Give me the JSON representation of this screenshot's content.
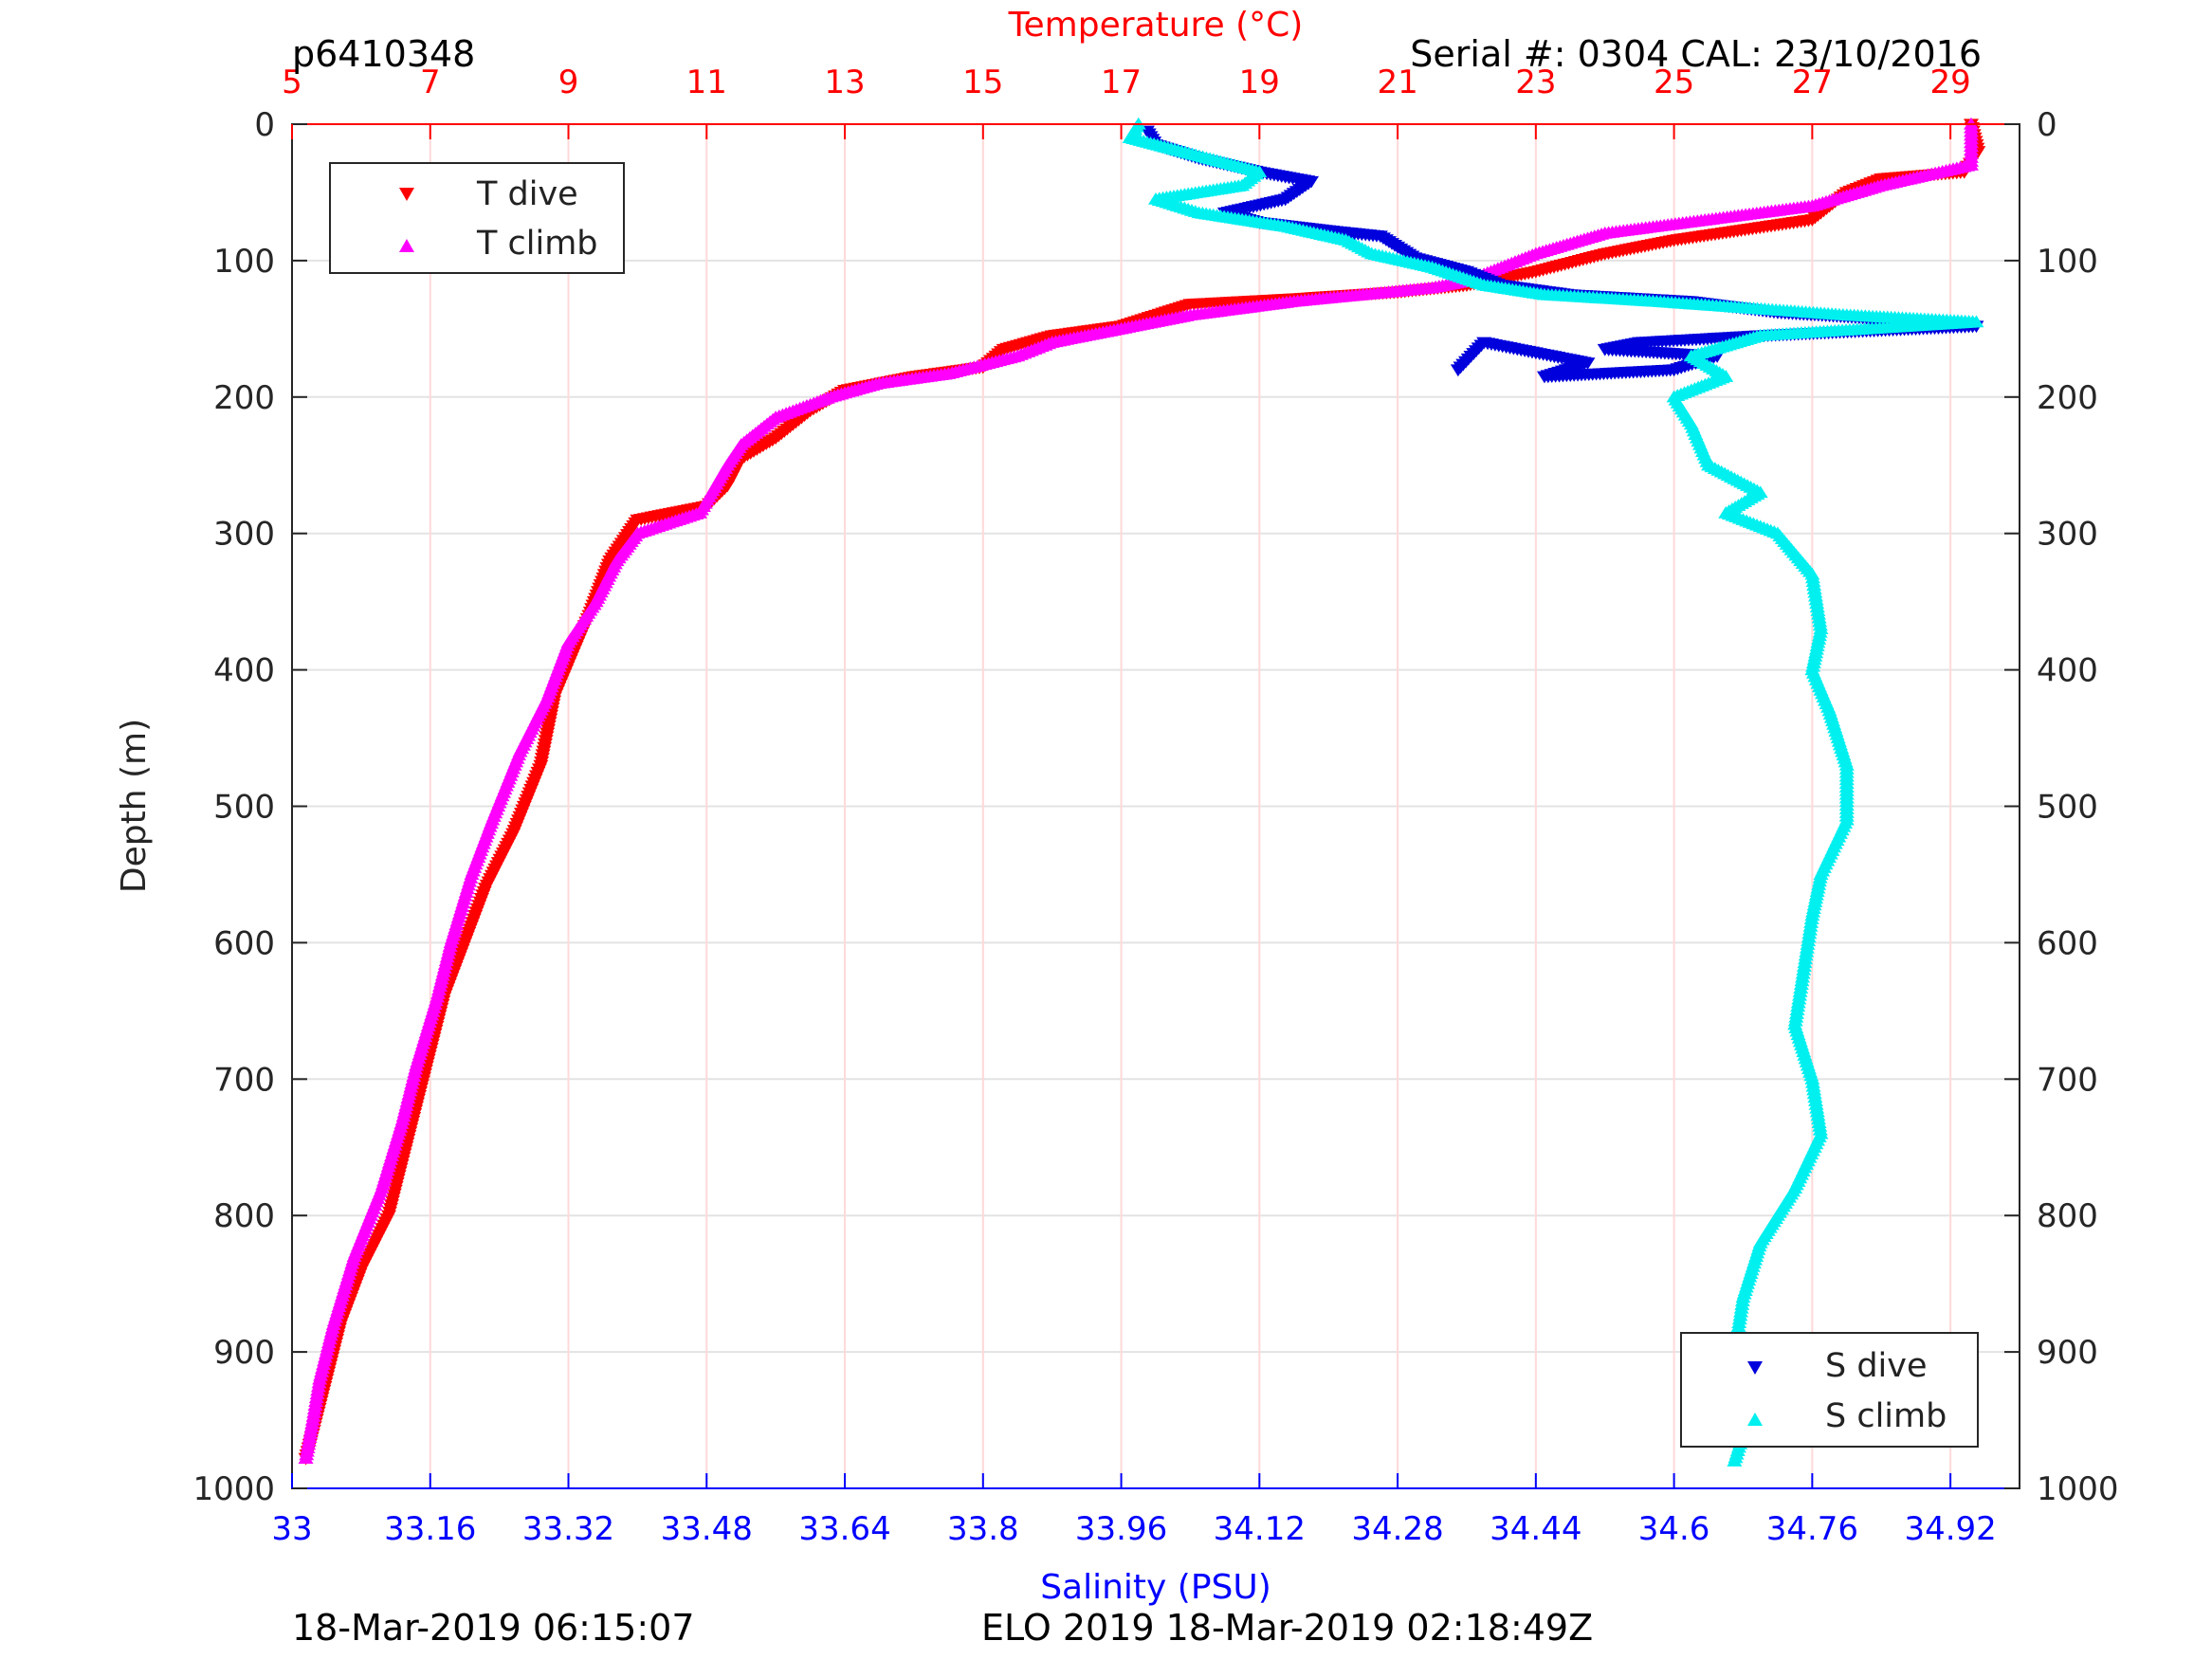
{
  "header": {
    "id_label": "p6410348",
    "serial_label": "Serial #: 0304  CAL: 23/10/2016",
    "footer_left": "18-Mar-2019 06:15:07",
    "footer_center": "ELO 2019 18-Mar-2019 02:18:49Z"
  },
  "chart_data": {
    "type": "scatter",
    "ylabel": "Depth (m)",
    "ylim": [
      0,
      1000
    ],
    "y_reversed": true,
    "yticks": [
      "0",
      "100",
      "200",
      "300",
      "400",
      "500",
      "600",
      "700",
      "800",
      "900",
      "1000"
    ],
    "temperature_axis": {
      "label": "Temperature (°C)",
      "position": "top",
      "range": [
        5,
        30
      ],
      "ticks": [
        "5",
        "7",
        "9",
        "11",
        "13",
        "15",
        "17",
        "19",
        "21",
        "23",
        "25",
        "27",
        "29"
      ],
      "color": "#ff0000"
    },
    "salinity_axis": {
      "label": "Salinity (PSU)",
      "position": "bottom",
      "range": [
        33.0,
        35.0
      ],
      "ticks": [
        "33",
        "33.16",
        "33.32",
        "33.48",
        "33.64",
        "33.8",
        "33.96",
        "34.12",
        "34.28",
        "34.44",
        "34.6",
        "34.76",
        "34.92"
      ],
      "color": "#0000ff"
    },
    "grid": true,
    "legends": [
      {
        "placement": "top-left",
        "entries": [
          "T dive",
          "T climb"
        ]
      },
      {
        "placement": "bottom-right",
        "entries": [
          "S dive",
          "S climb"
        ]
      }
    ],
    "series": [
      {
        "name": "T dive",
        "axis": "temperature",
        "color": "#ff0000",
        "marker": "triangle-down",
        "points": [
          [
            29.3,
            0
          ],
          [
            29.4,
            20
          ],
          [
            29.2,
            35
          ],
          [
            28.0,
            40
          ],
          [
            27.5,
            50
          ],
          [
            27.0,
            70
          ],
          [
            25.0,
            85
          ],
          [
            24.0,
            95
          ],
          [
            23.0,
            108
          ],
          [
            22.0,
            118
          ],
          [
            21.0,
            123
          ],
          [
            19.5,
            128
          ],
          [
            18.0,
            132
          ],
          [
            17.5,
            140
          ],
          [
            17.0,
            148
          ],
          [
            16.0,
            155
          ],
          [
            15.3,
            165
          ],
          [
            15.0,
            178
          ],
          [
            14.0,
            185
          ],
          [
            13.0,
            195
          ],
          [
            12.5,
            210
          ],
          [
            12.0,
            230
          ],
          [
            11.5,
            245
          ],
          [
            11.3,
            265
          ],
          [
            11.0,
            280
          ],
          [
            10.0,
            290
          ],
          [
            9.6,
            320
          ],
          [
            9.3,
            360
          ],
          [
            8.8,
            420
          ],
          [
            8.6,
            470
          ],
          [
            8.2,
            520
          ],
          [
            7.8,
            560
          ],
          [
            7.5,
            600
          ],
          [
            7.2,
            640
          ],
          [
            7.0,
            680
          ],
          [
            6.8,
            720
          ],
          [
            6.6,
            760
          ],
          [
            6.4,
            800
          ],
          [
            6.0,
            840
          ],
          [
            5.7,
            880
          ],
          [
            5.5,
            920
          ],
          [
            5.3,
            960
          ],
          [
            5.2,
            978
          ]
        ]
      },
      {
        "name": "T climb",
        "axis": "temperature",
        "color": "#ff00ff",
        "marker": "triangle-up",
        "points": [
          [
            29.3,
            0
          ],
          [
            29.3,
            30
          ],
          [
            28.0,
            45
          ],
          [
            27.0,
            60
          ],
          [
            25.5,
            70
          ],
          [
            24.0,
            80
          ],
          [
            23.0,
            95
          ],
          [
            22.5,
            105
          ],
          [
            22.0,
            115
          ],
          [
            21.5,
            120
          ],
          [
            20.5,
            125
          ],
          [
            19.5,
            130
          ],
          [
            18.0,
            140
          ],
          [
            17.0,
            150
          ],
          [
            16.0,
            160
          ],
          [
            15.5,
            170
          ],
          [
            14.5,
            183
          ],
          [
            13.5,
            190
          ],
          [
            12.8,
            200
          ],
          [
            12.0,
            215
          ],
          [
            11.5,
            235
          ],
          [
            11.3,
            250
          ],
          [
            10.9,
            285
          ],
          [
            10.0,
            300
          ],
          [
            9.7,
            320
          ],
          [
            9.4,
            350
          ],
          [
            9.0,
            380
          ],
          [
            8.7,
            420
          ],
          [
            8.3,
            460
          ],
          [
            7.9,
            510
          ],
          [
            7.6,
            550
          ],
          [
            7.3,
            600
          ],
          [
            7.1,
            640
          ],
          [
            6.8,
            690
          ],
          [
            6.6,
            730
          ],
          [
            6.3,
            780
          ],
          [
            5.9,
            830
          ],
          [
            5.6,
            880
          ],
          [
            5.4,
            920
          ],
          [
            5.3,
            950
          ],
          [
            5.2,
            978
          ]
        ]
      },
      {
        "name": "S dive",
        "axis": "salinity",
        "color": "#0000dd",
        "marker": "triangle-down",
        "points": [
          [
            33.99,
            5
          ],
          [
            34.0,
            15
          ],
          [
            34.05,
            25
          ],
          [
            34.12,
            35
          ],
          [
            34.18,
            42
          ],
          [
            34.15,
            55
          ],
          [
            34.08,
            65
          ],
          [
            34.12,
            72
          ],
          [
            34.16,
            75
          ],
          [
            34.2,
            78
          ],
          [
            34.26,
            82
          ],
          [
            34.28,
            90
          ],
          [
            34.3,
            98
          ],
          [
            34.36,
            108
          ],
          [
            34.4,
            118
          ],
          [
            34.48,
            125
          ],
          [
            34.62,
            130
          ],
          [
            34.72,
            138
          ],
          [
            34.9,
            145
          ],
          [
            34.95,
            148
          ],
          [
            34.7,
            155
          ],
          [
            34.56,
            160
          ],
          [
            34.52,
            165
          ],
          [
            34.65,
            170
          ],
          [
            34.6,
            180
          ],
          [
            34.45,
            185
          ],
          [
            34.5,
            175
          ],
          [
            34.38,
            160
          ],
          [
            34.35,
            180
          ]
        ]
      },
      {
        "name": "S climb",
        "axis": "salinity",
        "color": "#00f0f0",
        "marker": "triangle-up",
        "points": [
          [
            33.98,
            0
          ],
          [
            33.97,
            10
          ],
          [
            34.03,
            20
          ],
          [
            34.12,
            35
          ],
          [
            34.1,
            45
          ],
          [
            34.0,
            55
          ],
          [
            34.05,
            65
          ],
          [
            34.15,
            75
          ],
          [
            34.22,
            85
          ],
          [
            34.25,
            95
          ],
          [
            34.32,
            105
          ],
          [
            34.38,
            118
          ],
          [
            34.45,
            125
          ],
          [
            34.58,
            130
          ],
          [
            34.8,
            140
          ],
          [
            34.95,
            145
          ],
          [
            34.7,
            155
          ],
          [
            34.62,
            170
          ],
          [
            34.66,
            185
          ],
          [
            34.6,
            200
          ],
          [
            34.62,
            220
          ],
          [
            34.64,
            250
          ],
          [
            34.7,
            270
          ],
          [
            34.66,
            285
          ],
          [
            34.72,
            300
          ],
          [
            34.76,
            330
          ],
          [
            34.77,
            370
          ],
          [
            34.76,
            400
          ],
          [
            34.78,
            430
          ],
          [
            34.8,
            470
          ],
          [
            34.8,
            510
          ],
          [
            34.77,
            550
          ],
          [
            34.76,
            580
          ],
          [
            34.75,
            620
          ],
          [
            34.74,
            660
          ],
          [
            34.76,
            700
          ],
          [
            34.77,
            740
          ],
          [
            34.74,
            780
          ],
          [
            34.7,
            820
          ],
          [
            34.68,
            860
          ],
          [
            34.67,
            900
          ],
          [
            34.67,
            940
          ],
          [
            34.68,
            960
          ],
          [
            34.67,
            980
          ]
        ]
      }
    ]
  }
}
